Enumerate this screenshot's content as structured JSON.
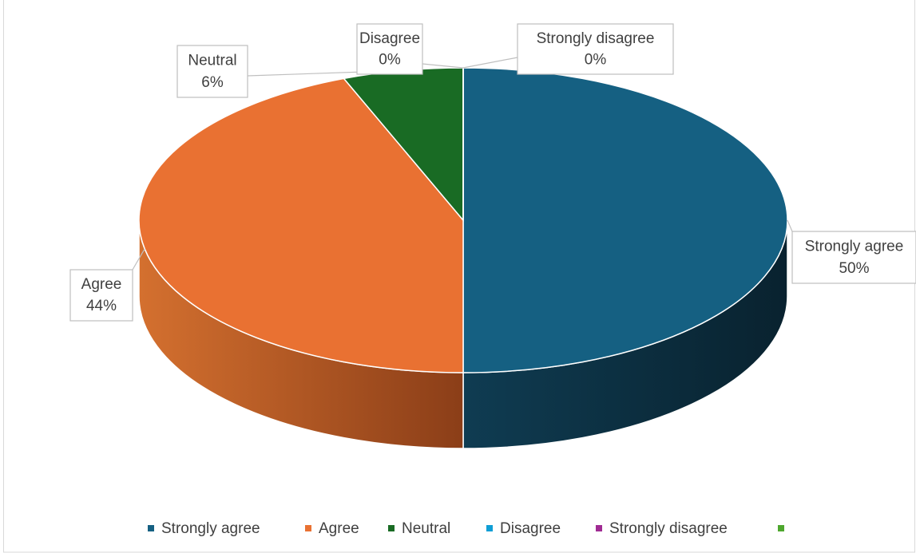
{
  "chart_data": {
    "type": "pie",
    "style": "3d",
    "categories": [
      "Strongly agree",
      "Agree",
      "Neutral",
      "Disagree",
      "Strongly disagree",
      null
    ],
    "values": [
      50,
      44,
      6,
      0,
      0,
      null
    ],
    "value_labels": [
      "50%",
      "44%",
      "6%",
      "0%",
      "0%",
      null
    ],
    "colors": [
      "#156082",
      "#e97132",
      "#196b24",
      "#0f9ed5",
      "#a02b93",
      "#4ea72e"
    ],
    "legend": "bottom"
  }
}
